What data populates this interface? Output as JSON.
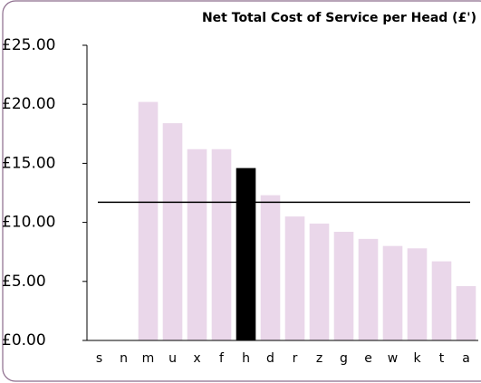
{
  "chart_data": {
    "type": "bar",
    "title": "Net Total Cost of Service per Head (£')",
    "categories": [
      "s",
      "n",
      "m",
      "u",
      "x",
      "f",
      "h",
      "d",
      "r",
      "z",
      "g",
      "e",
      "w",
      "k",
      "t",
      "a"
    ],
    "values": [
      null,
      null,
      20.2,
      18.4,
      16.2,
      16.2,
      14.6,
      12.3,
      10.5,
      9.9,
      9.2,
      8.6,
      8.0,
      7.8,
      6.7,
      4.6
    ],
    "colors": [
      null,
      null,
      "#ead7ea",
      "#ead7ea",
      "#ead7ea",
      "#ead7ea",
      "#000000",
      "#ead7ea",
      "#ead7ea",
      "#ead7ea",
      "#ead7ea",
      "#ead7ea",
      "#ead7ea",
      "#ead7ea",
      "#ead7ea",
      "#ead7ea"
    ],
    "reference_line": 11.7,
    "ylim": [
      0,
      25
    ],
    "yticks": [
      {
        "value": 0,
        "label": "£0.00"
      },
      {
        "value": 5,
        "label": "£5.00"
      },
      {
        "value": 10,
        "label": "£10.00"
      },
      {
        "value": 15,
        "label": "£15.00"
      },
      {
        "value": 20,
        "label": "£20.00"
      },
      {
        "value": 25,
        "label": "£25.00"
      }
    ]
  }
}
